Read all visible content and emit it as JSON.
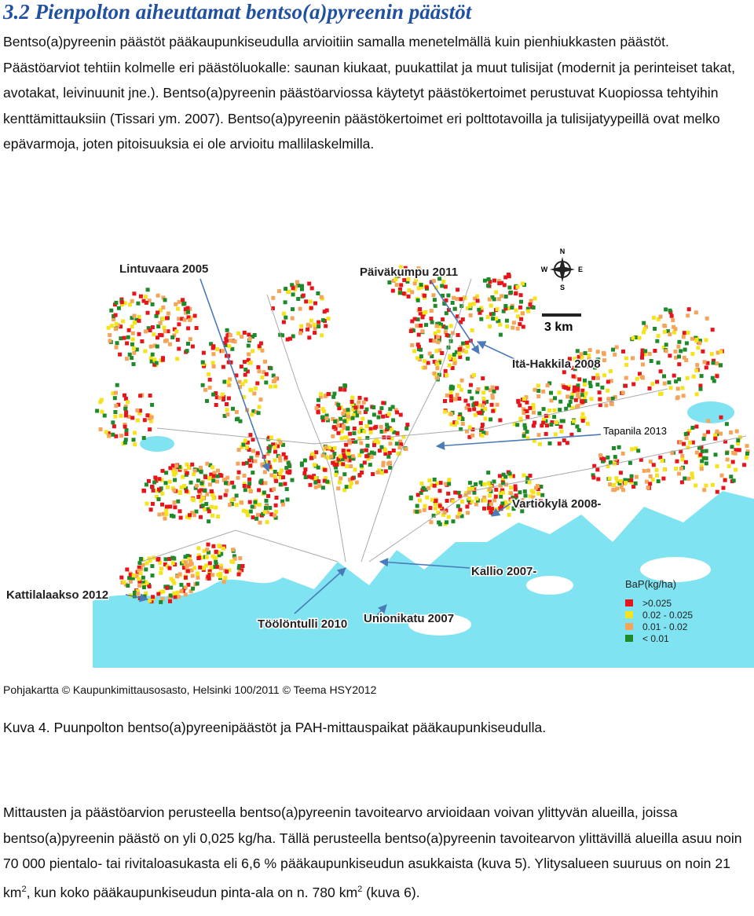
{
  "heading": "3.2 Pienpolton aiheuttamat bentso(a)pyreenin päästöt",
  "intro": "Bentso(a)pyreenin päästöt pääkaupunkiseudulla arvioitiin samalla menetelmällä kuin pienhiukkasten päästöt. Päästöarviot tehtiin kolmelle eri päästöluokalle: saunan kiukaat, puukattilat ja muut tulisijat (modernit ja perinteiset takat, avotakat, leivinuunit jne.). Bentso(a)pyreenin päästöarviossa käytetyt päästökertoimet perustuvat Kuopiossa tehtyihin kenttämittauksiin (Tissari ym. 2007). Bentso(a)pyreenin päästökertoimet eri polttotavoilla ja tulisijatyypeillä ovat melko epävarmoja, joten pitoisuuksia ei ole arvioitu mallilaskelmilla.",
  "figure": {
    "labels": [
      "Lintuvaara 2005",
      "Päiväkumpu 2011",
      "Itä-Hakkila 2008",
      "Tapanila 2013",
      "Vartiokylä 2008-",
      "Kallio 2007-",
      "Kattilalaakso 2012",
      "Töölöntulli 2010",
      "Unionikatu 2007"
    ],
    "scale": "3 km",
    "compass": [
      "N",
      "W",
      "E",
      "S"
    ],
    "legend": {
      "title": "BaP(kg/ha)",
      "items": [
        {
          "label": ">0.025",
          "color": "#e8141c"
        },
        {
          "label": "0.02 - 0.025",
          "color": "#f5e31c"
        },
        {
          "label": "0.01 - 0.02",
          "color": "#f5a55a"
        },
        {
          "label": "< 0.01",
          "color": "#1e8a2a"
        }
      ]
    },
    "credit": "Pohjakartta © Kaupunkimittausosasto, Helsinki 100/2011 © Teema HSY2012"
  },
  "caption": "Kuva 4. Puunpolton bentso(a)pyreenipäästöt ja PAH-mittauspaikat pääkaupunkiseudulla.",
  "body": {
    "parts": [
      "Mittausten ja päästöarvion perusteella bentso(a)pyreenin tavoitearvo arvioidaan voivan ylittyvän alueilla, joissa bentso(a)pyreenin päästö on yli 0,025 kg/ha. Tällä perusteella bentso(a)pyreenin tavoitearvon ylittävillä alueilla asuu noin 70 000 pientalo- tai rivitaloasukasta eli 6,6 % pääkaupunkiseudun asukkaista (kuva 5). Ylitysalueen suuruus on noin 21 km",
      "2",
      ", kun koko pääkaupunkiseudun pinta-ala on n. 780 km",
      "2",
      " (kuva 6)."
    ]
  }
}
